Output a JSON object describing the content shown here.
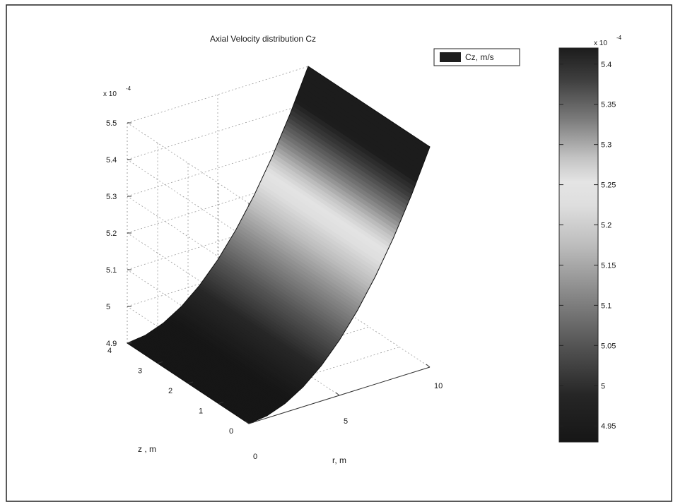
{
  "chart_data": {
    "type": "surface",
    "title": "Axial Velocity distribution Cz",
    "legend": {
      "label": "Cz, m/s",
      "position": "top-right"
    },
    "grid": true,
    "axes": {
      "x": {
        "label": "r, m",
        "ticks": [
          "0",
          "5",
          "10"
        ],
        "range": [
          0,
          10
        ]
      },
      "y": {
        "label": "z , m",
        "ticks": [
          "0",
          "1",
          "2",
          "3",
          "4"
        ],
        "range": [
          0,
          4
        ]
      },
      "z": {
        "label": "",
        "multiplier": "x 10",
        "exponent": "-4",
        "ticks": [
          "4.9",
          "5",
          "5.1",
          "5.2",
          "5.3",
          "5.4",
          "5.5"
        ],
        "range": [
          4.9,
          5.5
        ]
      }
    },
    "surface": {
      "r": [
        0,
        1,
        2,
        3,
        4,
        5,
        6,
        7,
        8,
        9,
        10
      ],
      "cz_x1e4": [
        4.9,
        4.906,
        4.924,
        4.954,
        4.996,
        5.05,
        5.116,
        5.194,
        5.284,
        5.386,
        5.5
      ],
      "z_extent": [
        0,
        4
      ],
      "note_constant_along_z": true
    },
    "colorbar": {
      "multiplier": "x 10",
      "exponent": "-4",
      "ticks": [
        "4.95",
        "5",
        "5.05",
        "5.1",
        "5.15",
        "5.2",
        "5.25",
        "5.3",
        "5.35",
        "5.4"
      ],
      "range": [
        4.93,
        5.42
      ]
    }
  }
}
